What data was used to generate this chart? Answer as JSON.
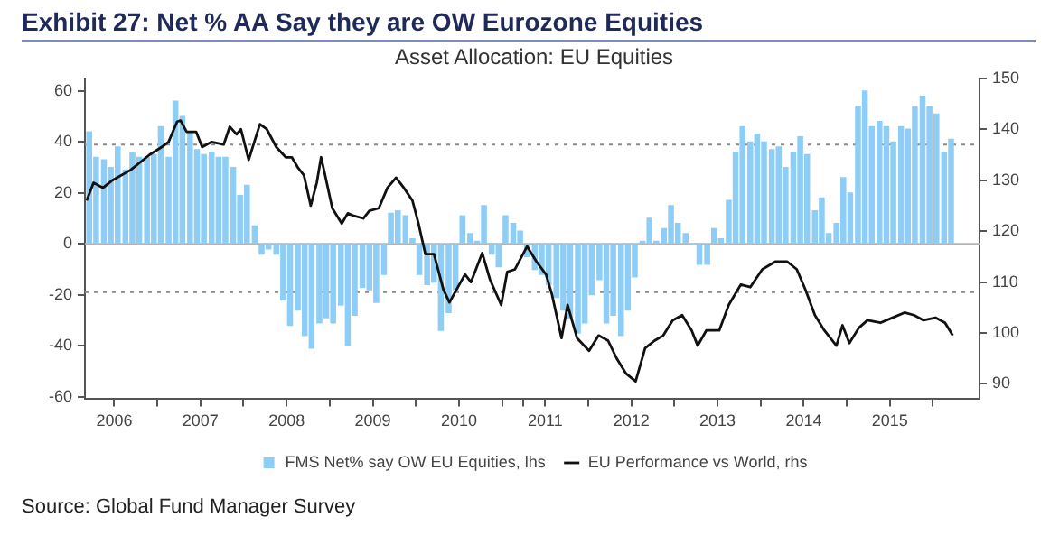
{
  "chart_data": {
    "type": "bar",
    "title": "Exhibit 27: Net % AA Say they are OW Eurozone Equities",
    "subtitle": "Asset Allocation: EU Equities",
    "xlim": [
      2006.16,
      2016.54
    ],
    "xticks": [
      {
        "value": 2007,
        "label": null
      },
      {
        "value": 2008,
        "label": null
      },
      {
        "value": 2009,
        "label": null
      },
      {
        "value": 2010,
        "label": null
      },
      {
        "value": 2011,
        "label": null
      },
      {
        "value": 2012,
        "label": null
      },
      {
        "value": 2013,
        "label": null
      },
      {
        "value": 2014,
        "label": null
      },
      {
        "value": 2015,
        "label": null
      },
      {
        "value": 2016,
        "label": null
      },
      {
        "value": 2006.5,
        "label": "2006"
      },
      {
        "value": 2007.5,
        "label": "2007"
      },
      {
        "value": 2008.5,
        "label": "2008"
      },
      {
        "value": 2009.5,
        "label": "2009"
      },
      {
        "value": 2010.5,
        "label": "2010"
      },
      {
        "value": 2011.5,
        "label": "2011"
      },
      {
        "value": 2012.5,
        "label": "2012"
      },
      {
        "value": 2013.5,
        "label": "2013"
      },
      {
        "value": 2014.5,
        "label": "2014"
      },
      {
        "value": 2015.5,
        "label": "2015"
      }
    ],
    "ylim": [
      -61,
      65
    ],
    "yticks": [
      -60,
      -40,
      -20,
      0,
      20,
      40,
      60
    ],
    "y2lim": [
      87,
      150
    ],
    "y2ticks": [
      90,
      100,
      110,
      120,
      130,
      140,
      150
    ],
    "grid": false,
    "legend": "bottom",
    "series": [
      {
        "name": "FMS Net% say OW EU Equities, lhs",
        "color": "#8ecdf5",
        "x": [
          2006.21,
          2006.29,
          2006.38,
          2006.46,
          2006.54,
          2006.63,
          2006.71,
          2006.79,
          2006.88,
          2006.96,
          2007.04,
          2007.13,
          2007.21,
          2007.29,
          2007.38,
          2007.46,
          2007.54,
          2007.63,
          2007.71,
          2007.79,
          2007.88,
          2007.96,
          2008.04,
          2008.13,
          2008.21,
          2008.29,
          2008.38,
          2008.46,
          2008.54,
          2008.63,
          2008.71,
          2008.79,
          2008.88,
          2008.96,
          2009.04,
          2009.13,
          2009.21,
          2009.29,
          2009.38,
          2009.46,
          2009.54,
          2009.63,
          2009.71,
          2009.79,
          2009.88,
          2009.96,
          2010.04,
          2010.13,
          2010.21,
          2010.29,
          2010.38,
          2010.46,
          2010.54,
          2010.63,
          2010.71,
          2010.79,
          2010.88,
          2010.96,
          2011.04,
          2011.13,
          2011.21,
          2011.29,
          2011.38,
          2011.46,
          2011.54,
          2011.63,
          2011.71,
          2011.79,
          2011.88,
          2011.96,
          2012.04,
          2012.13,
          2012.21,
          2012.29,
          2012.38,
          2012.46,
          2012.54,
          2012.63,
          2012.71,
          2012.79,
          2012.88,
          2012.96,
          2013.04,
          2013.13,
          2013.21,
          2013.29,
          2013.38,
          2013.46,
          2013.54,
          2013.63,
          2013.71,
          2013.79,
          2013.88,
          2013.96,
          2014.04,
          2014.13,
          2014.21,
          2014.29,
          2014.38,
          2014.46,
          2014.54,
          2014.63,
          2014.71,
          2014.79,
          2014.88,
          2014.96,
          2015.04,
          2015.13,
          2015.21,
          2015.29,
          2015.38,
          2015.46,
          2015.54,
          2015.63,
          2015.71,
          2015.79,
          2015.88,
          2015.96,
          2016.04,
          2016.13,
          2016.21
        ],
        "values": [
          44,
          34,
          33,
          30,
          38,
          29,
          36,
          34,
          34,
          35,
          46,
          34,
          56,
          50,
          44,
          37,
          35,
          36,
          34,
          34,
          30,
          19,
          23,
          7,
          -4,
          -2,
          -4,
          -22,
          -32,
          -26,
          -36,
          -41,
          -31,
          -29,
          -31,
          -24,
          -40,
          -28,
          -17,
          -18,
          -23,
          -12,
          12,
          13,
          11,
          2,
          -12,
          -16,
          -15,
          -34,
          -27,
          -18,
          11,
          4,
          1,
          15,
          -4,
          -9,
          11,
          8,
          5,
          -5,
          -10,
          -12,
          -16,
          -21,
          -26,
          -29,
          -35,
          -31,
          -20,
          -14,
          -31,
          -28,
          -36,
          -26,
          -13,
          1,
          10,
          1,
          6,
          15,
          8,
          4,
          0,
          -8,
          -8,
          6,
          2,
          17,
          36,
          46,
          40,
          43,
          40,
          37,
          38,
          30,
          36,
          42,
          35,
          13,
          18,
          4,
          8,
          26,
          20,
          54,
          60,
          46,
          48,
          46,
          40,
          46,
          45,
          54,
          58,
          54,
          51,
          36,
          41
        ]
      },
      {
        "name": "EU Performance vs World, rhs",
        "type": "line",
        "axis": "y2",
        "color": "#111111",
        "x": [
          2006.18,
          2006.26,
          2006.37,
          2006.48,
          2006.69,
          2006.91,
          2007.05,
          2007.13,
          2007.23,
          2007.27,
          2007.34,
          2007.45,
          2007.52,
          2007.63,
          2007.77,
          2007.84,
          2007.92,
          2007.97,
          2008.06,
          2008.19,
          2008.27,
          2008.38,
          2008.49,
          2008.56,
          2008.63,
          2008.7,
          2008.78,
          2008.85,
          2008.9,
          2008.94,
          2009.03,
          2009.14,
          2009.21,
          2009.28,
          2009.39,
          2009.46,
          2009.57,
          2009.67,
          2009.77,
          2009.86,
          2009.96,
          2010.03,
          2010.11,
          2010.21,
          2010.32,
          2010.39,
          2010.47,
          2010.57,
          2010.64,
          2010.77,
          2010.86,
          2010.99,
          2011.06,
          2011.15,
          2011.29,
          2011.4,
          2011.51,
          2011.58,
          2011.69,
          2011.76,
          2011.87,
          2012.01,
          2012.12,
          2012.23,
          2012.33,
          2012.44,
          2012.55,
          2012.66,
          2012.77,
          2012.87,
          2012.98,
          2013.09,
          2013.2,
          2013.27,
          2013.37,
          2013.52,
          2013.63,
          2013.77,
          2013.88,
          2014.02,
          2014.17,
          2014.31,
          2014.42,
          2014.52,
          2014.63,
          2014.74,
          2014.88,
          2014.95,
          2015.03,
          2015.14,
          2015.24,
          2015.39,
          2015.53,
          2015.67,
          2015.78,
          2015.89,
          2016.03,
          2016.14,
          2016.23
        ],
        "values": [
          126,
          129.5,
          128.5,
          130,
          132,
          135,
          136.5,
          137.5,
          141.5,
          141.7,
          139.5,
          139.5,
          136.5,
          137.5,
          137,
          140.5,
          139,
          140,
          134,
          141,
          140,
          136.5,
          134.5,
          134.5,
          132.5,
          131,
          125,
          129.5,
          134.5,
          131.5,
          124.5,
          121.5,
          123.5,
          123,
          122.5,
          124,
          124.5,
          128.5,
          130.5,
          128.5,
          126,
          121.5,
          115.5,
          115.5,
          108.5,
          106,
          108.5,
          111.5,
          110,
          115.7,
          110.5,
          105.5,
          112,
          112.5,
          117,
          114,
          111.5,
          107.5,
          99,
          105.5,
          99,
          96.5,
          99.5,
          98.5,
          95,
          92,
          90.5,
          97,
          98.5,
          99.5,
          102.5,
          103.5,
          100.5,
          97.5,
          100.5,
          100.5,
          105.5,
          109.5,
          109,
          112.5,
          114,
          114,
          112.5,
          108.5,
          103.5,
          100.5,
          97.5,
          101.5,
          98,
          101,
          102.5,
          102,
          103,
          104,
          103.5,
          102.5,
          103,
          102,
          99.5
        ]
      }
    ],
    "ref_lines": [
      {
        "axis": "y",
        "value": 0,
        "color": "#b5b5b5",
        "line_style": "solid"
      },
      {
        "axis": "y",
        "value": 39,
        "color": "#8a8a8a",
        "line_style": "dotted"
      },
      {
        "axis": "y",
        "value": -19,
        "color": "#8a8a8a",
        "line_style": "dotted"
      }
    ],
    "annotations": [
      "Source: Global Fund Manager Survey"
    ]
  }
}
